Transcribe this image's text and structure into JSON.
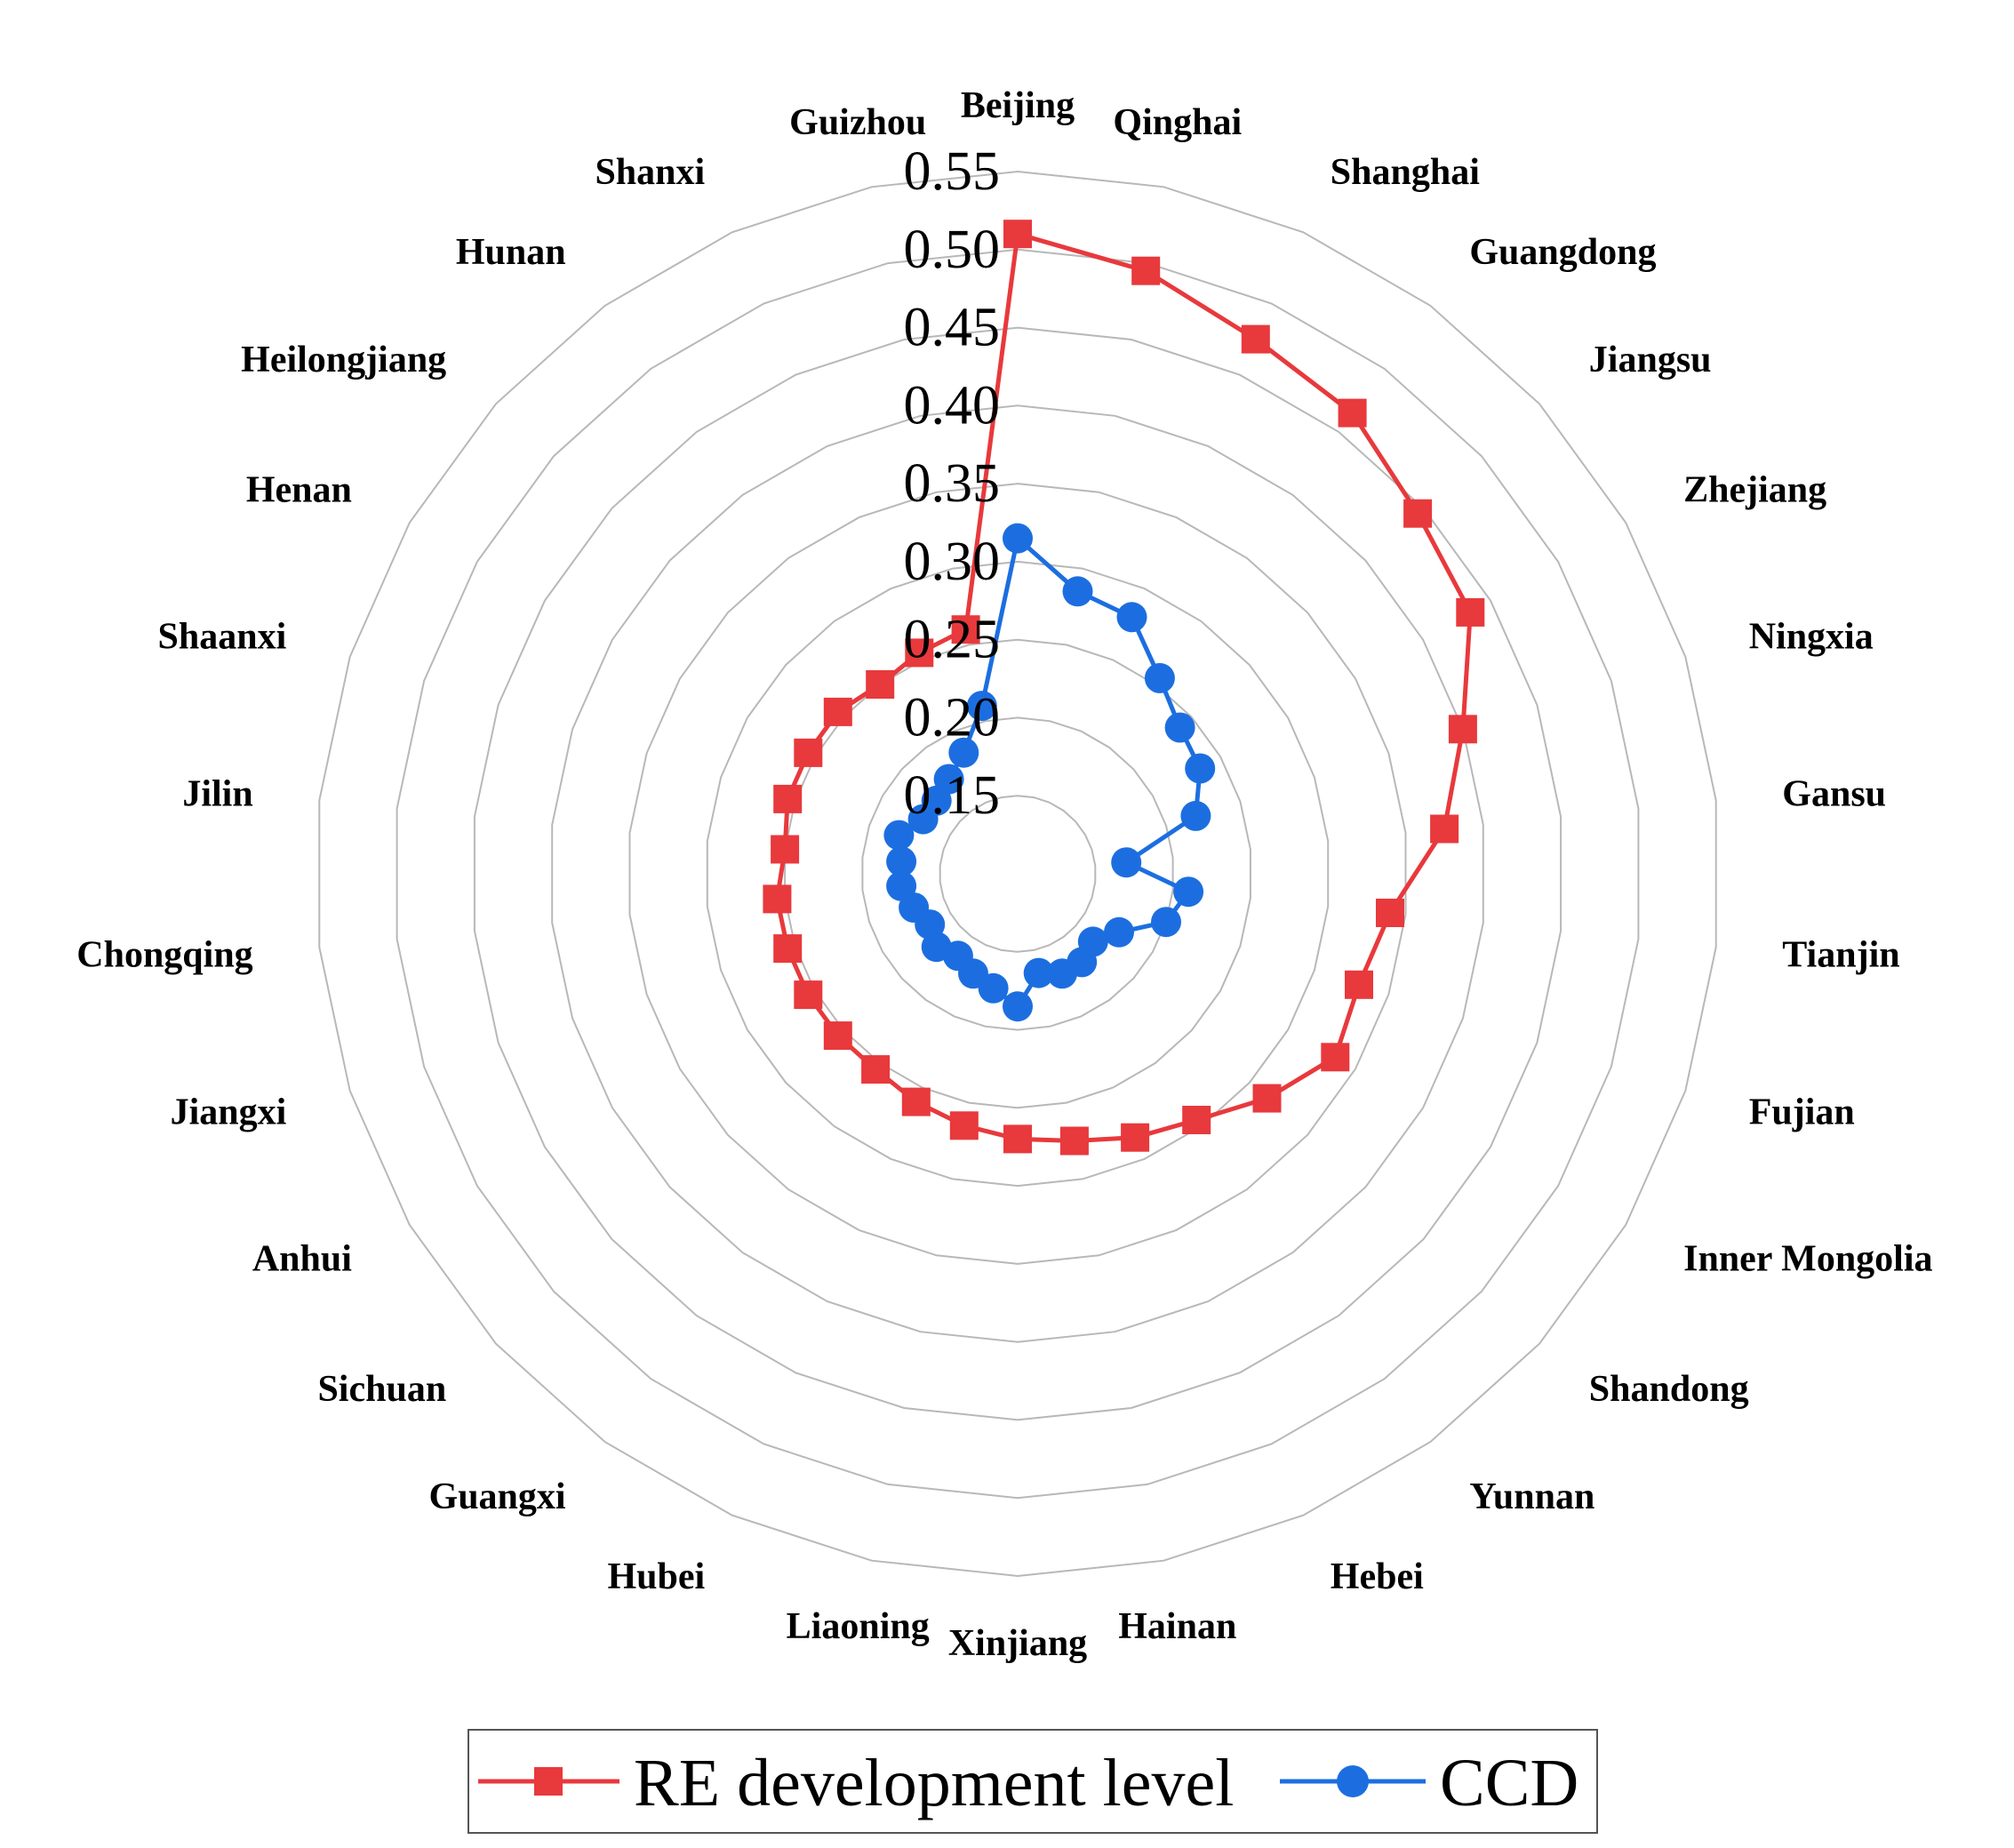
{
  "chart_data": {
    "type": "radar",
    "title": "",
    "categories": [
      "Beijing",
      "Qinghai",
      "Shanghai",
      "Guangdong",
      "Jiangsu",
      "Zhejiang",
      "Ningxia",
      "Gansu",
      "Tianjin",
      "Fujian",
      "Inner Mongolia",
      "Shandong",
      "Yunnan",
      "Hebei",
      "Hainan",
      "Xinjiang",
      "Liaoning",
      "Hubei",
      "Guangxi",
      "Sichuan",
      "Anhui",
      "Jiangxi",
      "Chongqing",
      "Jilin",
      "Shaanxi",
      "Henan",
      "Heilongjiang",
      "Hunan",
      "Shanxi",
      "Guizhou"
    ],
    "rlim": [
      0.1,
      0.55
    ],
    "ticks": [
      0.15,
      0.2,
      0.25,
      0.3,
      0.35,
      0.4,
      0.45,
      0.5,
      0.55
    ],
    "tick_labels": [
      "0.15",
      "0.20",
      "0.25",
      "0.30",
      "0.35",
      "0.40",
      "0.45",
      "0.50",
      "0.55"
    ],
    "series": [
      {
        "name": "RE development level",
        "color": "#e8393c",
        "marker": "square",
        "values": [
          0.51,
          0.495,
          0.475,
          0.465,
          0.445,
          0.435,
          0.4,
          0.375,
          0.34,
          0.33,
          0.335,
          0.315,
          0.295,
          0.285,
          0.275,
          0.27,
          0.265,
          0.26,
          0.255,
          0.255,
          0.255,
          0.255,
          0.255,
          0.25,
          0.255,
          0.255,
          0.255,
          0.25,
          0.255,
          0.26
        ]
      },
      {
        "name": "CCD",
        "color": "#1c6ee0",
        "marker": "circle",
        "values": [
          0.315,
          0.285,
          0.28,
          0.255,
          0.24,
          0.235,
          0.22,
          0.17,
          0.21,
          0.2,
          0.175,
          0.165,
          0.17,
          0.17,
          0.165,
          0.185,
          0.175,
          0.17,
          0.165,
          0.17,
          0.165,
          0.17,
          0.175,
          0.175,
          0.18,
          0.17,
          0.17,
          0.175,
          0.185,
          0.21
        ]
      }
    ],
    "legend": [
      "RE development level",
      "CCD"
    ],
    "legend_position": "bottom"
  }
}
